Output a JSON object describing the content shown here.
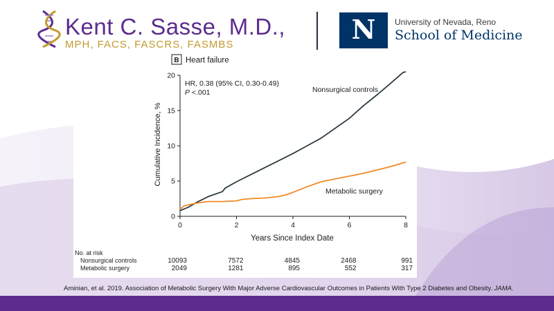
{
  "brand": {
    "name": "Kent C. Sasse, M.D.,",
    "credentials": "MPH, FACS, FASCRS, FASMBS"
  },
  "school": {
    "logo_letter": "N",
    "university": "University of Nevada, Reno",
    "name": "School of Medicine"
  },
  "colors": {
    "brand_purple": "#5b2c8e",
    "brand_gold": "#c29a2e",
    "school_navy": "#003366",
    "nonsurgical_line": "#2b3a42",
    "surgery_line": "#f08a24"
  },
  "chart_data": {
    "type": "line",
    "panel_label": "B",
    "title": "Heart failure",
    "xlabel": "Years Since Index Date",
    "ylabel": "Cumulative Incidence, %",
    "xlim": [
      0,
      8
    ],
    "ylim": [
      0,
      20
    ],
    "x_ticks": [
      0,
      2,
      4,
      6,
      8
    ],
    "y_ticks": [
      0,
      5,
      10,
      15,
      20
    ],
    "annotation": {
      "line1": "HR, 0.38 (95% CI, 0.30-0.49)",
      "line2_italic": "P",
      "line2_rest": " <.001"
    },
    "series": [
      {
        "name": "Nonsurgical controls",
        "color": "#2b3a42",
        "x": [
          0,
          0.3,
          0.6,
          1.0,
          1.5,
          1.6,
          2.0,
          2.5,
          3.0,
          3.5,
          4.0,
          4.5,
          5.0,
          5.5,
          6.0,
          6.5,
          7.0,
          7.5,
          7.9,
          8.0
        ],
        "y": [
          0.8,
          1.3,
          2.0,
          2.8,
          3.5,
          4.0,
          4.9,
          5.9,
          6.9,
          7.9,
          8.9,
          10.0,
          11.1,
          12.5,
          13.9,
          15.7,
          17.3,
          19.0,
          20.4,
          20.5
        ]
      },
      {
        "name": "Metabolic surgery",
        "color": "#f08a24",
        "x": [
          0,
          0.15,
          0.5,
          0.8,
          1.0,
          1.5,
          2.0,
          2.2,
          2.5,
          3.0,
          3.5,
          3.8,
          4.0,
          4.5,
          5.0,
          5.5,
          6.0,
          6.5,
          7.0,
          7.5,
          8.0
        ],
        "y": [
          1.0,
          1.5,
          1.8,
          2.0,
          2.1,
          2.1,
          2.2,
          2.4,
          2.5,
          2.6,
          2.8,
          3.1,
          3.4,
          4.2,
          4.9,
          5.3,
          5.7,
          6.1,
          6.6,
          7.1,
          7.7
        ]
      }
    ],
    "risk_table": {
      "header": "No. at risk",
      "rows": [
        {
          "label": "Nonsurgical controls",
          "values": [
            "10093",
            "7572",
            "4845",
            "2468",
            "991"
          ]
        },
        {
          "label": "Metabolic surgery",
          "values": [
            "2049",
            "1281",
            "895",
            "552",
            "317"
          ]
        }
      ]
    }
  },
  "citation": {
    "text": "Aminian, et al. 2019. Association of Metabolic Surgery With Major Adverse Cardiovascular Outcomes in Patients With Type 2 Diabetes and Obesity. ",
    "journal": "JAMA."
  }
}
